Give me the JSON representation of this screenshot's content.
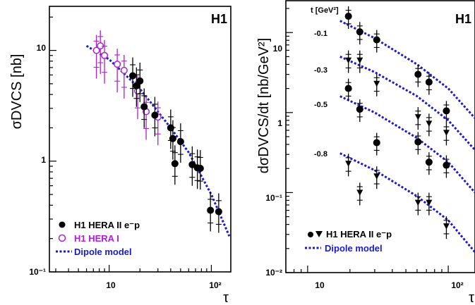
{
  "chart_data": [
    {
      "type": "scatter",
      "title": "H1",
      "ylabel": "σDVCS [nb]",
      "xlabel": "τ",
      "xscale": "log",
      "yscale": "log",
      "xlim": [
        2.6,
        155
      ],
      "ylim": [
        0.1,
        25
      ],
      "x_tick_labels": [
        "10",
        "10²"
      ],
      "y_tick_labels": [
        "10⁻¹",
        "1",
        "10"
      ],
      "legend_position": "bottom-left",
      "series": [
        {
          "name": "H1 HERA II e⁻p",
          "marker": "filled-circle",
          "color": "#000000",
          "points": [
            {
              "x": 17,
              "y": 5.9
            },
            {
              "x": 18.5,
              "y": 4.8
            },
            {
              "x": 20,
              "y": 5.3
            },
            {
              "x": 22,
              "y": 3.1
            },
            {
              "x": 28,
              "y": 2.6
            },
            {
              "x": 40,
              "y": 2.0
            },
            {
              "x": 42,
              "y": 1.6
            },
            {
              "x": 44,
              "y": 0.95
            },
            {
              "x": 50,
              "y": 1.5
            },
            {
              "x": 65,
              "y": 0.93
            },
            {
              "x": 73,
              "y": 0.87
            },
            {
              "x": 78,
              "y": 0.86
            },
            {
              "x": 98,
              "y": 0.36
            },
            {
              "x": 118,
              "y": 0.35
            }
          ]
        },
        {
          "name": "H1 HERA I",
          "marker": "open-circle",
          "color": "#aa22cc",
          "points": [
            {
              "x": 7.5,
              "y": 10.0
            },
            {
              "x": 8.2,
              "y": 11.0
            },
            {
              "x": 9.0,
              "y": 9.0
            },
            {
              "x": 12,
              "y": 7.5
            },
            {
              "x": 14,
              "y": 6.6
            },
            {
              "x": 19,
              "y": 4.3
            },
            {
              "x": 23,
              "y": 2.8
            },
            {
              "x": 30,
              "y": 2.5
            }
          ]
        },
        {
          "name": "Dipole model",
          "line": "dotted",
          "color": "#1a1acc",
          "points": [
            {
              "x": 6,
              "y": 11
            },
            {
              "x": 10,
              "y": 8.3
            },
            {
              "x": 20,
              "y": 4.5
            },
            {
              "x": 40,
              "y": 2.0
            },
            {
              "x": 60,
              "y": 1.2
            },
            {
              "x": 100,
              "y": 0.5
            },
            {
              "x": 150,
              "y": 0.21
            }
          ]
        }
      ]
    },
    {
      "type": "scatter",
      "title": "H1",
      "ylabel": "dσDVCS/dt [nb/GeV²]",
      "xlabel": "τ",
      "xscale": "log",
      "yscale": "log",
      "xlim": [
        7,
        155
      ],
      "ylim": [
        0.01,
        25
      ],
      "x_tick_labels": [
        "10",
        "10²"
      ],
      "y_tick_labels": [
        "10⁻²",
        "10⁻¹",
        "1",
        "10"
      ],
      "t_header": "t [GeV²]",
      "legend_position": "bottom-left",
      "legend": [
        "H1 HERA II e⁻p",
        "Dipole model"
      ],
      "t_bins": [
        {
          "t": "-0.1",
          "marker": "filled-circle",
          "points": [
            {
              "x": 19.5,
              "y": 16
            },
            {
              "x": 23.5,
              "y": 10.2
            },
            {
              "x": 31,
              "y": 8.1
            },
            {
              "x": 61,
              "y": 3.0
            },
            {
              "x": 73,
              "y": 2.4
            },
            {
              "x": 97,
              "y": 1.05
            }
          ],
          "model": [
            {
              "x": 17,
              "y": 14
            },
            {
              "x": 30,
              "y": 8.5
            },
            {
              "x": 60,
              "y": 4.0
            },
            {
              "x": 100,
              "y": 2.0
            },
            {
              "x": 155,
              "y": 0.85
            }
          ]
        },
        {
          "t": "-0.3",
          "marker": "filled-triangle-down",
          "points": [
            {
              "x": 19.5,
              "y": 4.5
            },
            {
              "x": 23.5,
              "y": 4.5
            },
            {
              "x": 31,
              "y": 2.3
            },
            {
              "x": 61,
              "y": 0.88
            },
            {
              "x": 73,
              "y": 0.73
            },
            {
              "x": 97,
              "y": 0.56
            }
          ],
          "model": [
            {
              "x": 17,
              "y": 5.0
            },
            {
              "x": 30,
              "y": 3.2
            },
            {
              "x": 60,
              "y": 1.6
            },
            {
              "x": 100,
              "y": 0.8
            },
            {
              "x": 155,
              "y": 0.34
            }
          ]
        },
        {
          "t": "-0.5",
          "marker": "filled-circle",
          "points": [
            {
              "x": 19.5,
              "y": 2.0
            },
            {
              "x": 23.5,
              "y": 1.1
            },
            {
              "x": 31,
              "y": 0.42
            },
            {
              "x": 61,
              "y": 0.43
            },
            {
              "x": 73,
              "y": 0.24
            },
            {
              "x": 97,
              "y": 0.22
            }
          ],
          "model": [
            {
              "x": 17,
              "y": 1.6
            },
            {
              "x": 30,
              "y": 1.0
            },
            {
              "x": 60,
              "y": 0.48
            },
            {
              "x": 100,
              "y": 0.24
            },
            {
              "x": 155,
              "y": 0.1
            }
          ]
        },
        {
          "t": "-0.8",
          "marker": "filled-triangle-down",
          "points": [
            {
              "x": 19.5,
              "y": 0.23
            },
            {
              "x": 23.5,
              "y": 0.1
            },
            {
              "x": 31,
              "y": 0.16
            },
            {
              "x": 61,
              "y": 0.075
            },
            {
              "x": 73,
              "y": 0.075
            },
            {
              "x": 97,
              "y": 0.038
            }
          ],
          "model": [
            {
              "x": 17,
              "y": 0.31
            },
            {
              "x": 30,
              "y": 0.19
            },
            {
              "x": 60,
              "y": 0.09
            },
            {
              "x": 100,
              "y": 0.045
            },
            {
              "x": 155,
              "y": 0.018
            }
          ]
        }
      ]
    }
  ]
}
